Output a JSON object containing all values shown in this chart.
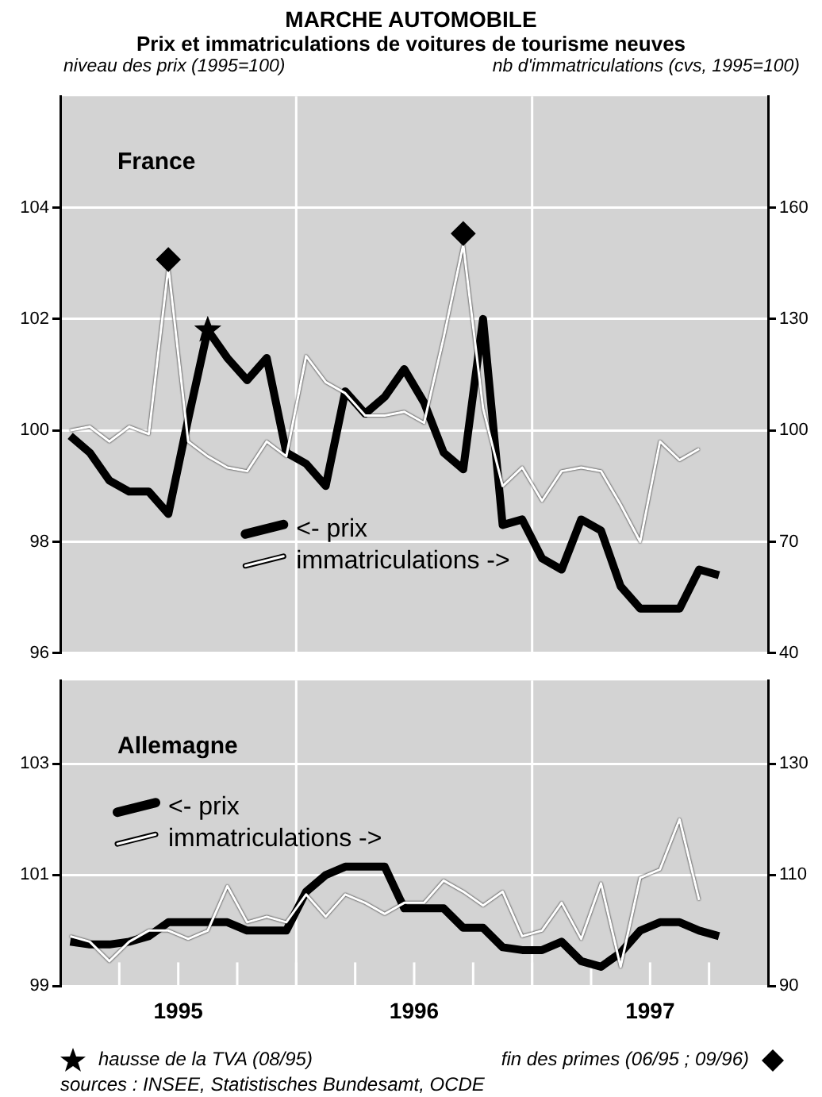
{
  "chart_data": [
    {
      "type": "line",
      "title": "MARCHE AUTOMOBILE",
      "subtitle": "Prix et immatriculations de voitures de tourisme neuves",
      "ylabel": "niveau des prix (1995=100)",
      "y2label": "nb d'immatriculations (cvs, 1995=100)",
      "annotations": [
        "France"
      ],
      "x": [
        1995.042,
        1995.125,
        1995.208,
        1995.292,
        1995.375,
        1995.458,
        1995.542,
        1995.625,
        1995.708,
        1995.792,
        1995.875,
        1995.958,
        1996.042,
        1996.125,
        1996.208,
        1996.292,
        1996.375,
        1996.458,
        1996.542,
        1996.625,
        1996.708,
        1996.792,
        1996.875,
        1996.958,
        1997.042,
        1997.125,
        1997.208,
        1997.292,
        1997.375,
        1997.458,
        1997.542,
        1997.625,
        1997.708,
        1997.792
      ],
      "xlim": [
        1995,
        1998
      ],
      "ylim": [
        96,
        106
      ],
      "yticks": [
        96,
        98,
        100,
        102,
        104
      ],
      "y2lim": [
        40,
        190
      ],
      "y2ticks": [
        40,
        70,
        100,
        130,
        160
      ],
      "series": [
        {
          "name": "<- prix",
          "color": "#000000",
          "axis": "y",
          "values": [
            99.9,
            99.6,
            99.1,
            98.9,
            98.9,
            98.5,
            100.2,
            101.8,
            101.3,
            100.9,
            101.3,
            99.6,
            99.4,
            99.0,
            100.7,
            100.3,
            100.6,
            101.1,
            100.5,
            99.6,
            99.3,
            102.0,
            98.3,
            98.4,
            97.7,
            97.5,
            98.4,
            98.2,
            97.2,
            96.8,
            96.8,
            96.8,
            97.5,
            97.4
          ]
        },
        {
          "name": "immatriculations ->",
          "color": "#ffffff",
          "axis": "y2",
          "values": [
            100,
            101,
            97,
            101,
            99,
            144,
            97,
            93,
            90,
            89,
            97,
            93,
            120,
            113,
            110,
            104,
            104,
            105,
            102,
            125,
            150,
            106,
            85,
            90,
            81,
            89,
            90,
            89,
            80,
            70,
            97,
            92,
            95,
            null
          ]
        },
        {
          "type": "scatter",
          "color": "#000000",
          "axis": "y",
          "marker": "star",
          "x": [
            1995.625
          ],
          "values": [
            101.8
          ]
        },
        {
          "type": "scatter",
          "color": "#000000",
          "axis": "y2",
          "marker": "diamond",
          "x": [
            1995.458,
            1996.708
          ],
          "values": [
            146,
            153
          ]
        }
      ],
      "ref_lines": [
        {
          "axis": "x",
          "value": 1996,
          "color": "#ffffff"
        },
        {
          "axis": "x",
          "value": 1997,
          "color": "#ffffff"
        }
      ],
      "grid": "y",
      "legend": "bottom",
      "tick_labels": "y",
      "marker": "none"
    },
    {
      "type": "line",
      "annotations": [
        "Allemagne",
        "hausse de la TVA (08/95)",
        "fin des primes (06/95 ; 09/96)",
        "sources : INSEE, Statistisches Bundesamt, OCDE"
      ],
      "x": [
        1995.042,
        1995.125,
        1995.208,
        1995.292,
        1995.375,
        1995.458,
        1995.542,
        1995.625,
        1995.708,
        1995.792,
        1995.875,
        1995.958,
        1996.042,
        1996.125,
        1996.208,
        1996.292,
        1996.375,
        1996.458,
        1996.542,
        1996.625,
        1996.708,
        1996.792,
        1996.875,
        1996.958,
        1997.042,
        1997.125,
        1997.208,
        1997.292,
        1997.375,
        1997.458,
        1997.542,
        1997.625,
        1997.708,
        1997.792
      ],
      "xlim": [
        1995,
        1998
      ],
      "xticks": [
        {
          "value": 1995.25,
          "label": null
        },
        {
          "value": 1995.5,
          "label": "1995"
        },
        {
          "value": 1995.75,
          "label": null
        },
        {
          "value": 1996,
          "label": null
        },
        {
          "value": 1996.25,
          "label": null
        },
        {
          "value": 1996.5,
          "label": "1996"
        },
        {
          "value": 1996.75,
          "label": null
        },
        {
          "value": 1997,
          "label": null
        },
        {
          "value": 1997.25,
          "label": null
        },
        {
          "value": 1997.5,
          "label": "1997"
        },
        {
          "value": 1997.75,
          "label": null
        }
      ],
      "ylim": [
        99,
        104.5
      ],
      "yticks": [
        99,
        101,
        103
      ],
      "y2lim": [
        90,
        145
      ],
      "y2ticks": [
        90,
        110,
        130
      ],
      "series": [
        {
          "name": "<- prix",
          "color": "#000000",
          "axis": "y",
          "values": [
            99.8,
            99.75,
            99.75,
            99.8,
            99.9,
            100.15,
            100.15,
            100.15,
            100.15,
            100.0,
            100.0,
            100.0,
            100.7,
            101.0,
            101.15,
            101.15,
            101.15,
            100.4,
            100.4,
            100.4,
            100.05,
            100.05,
            99.7,
            99.65,
            99.65,
            99.8,
            99.45,
            99.35,
            99.6,
            100.0,
            100.15,
            100.15,
            100.0,
            99.9
          ]
        },
        {
          "name": "immatriculations ->",
          "color": "#ffffff",
          "axis": "y2",
          "values": [
            99,
            98,
            94.5,
            98,
            100,
            100,
            98.5,
            100,
            108,
            101.5,
            102.5,
            101.5,
            106.5,
            102.5,
            106.5,
            105,
            103,
            105,
            105,
            109,
            107,
            104.5,
            107,
            99,
            100,
            105,
            98.5,
            108.5,
            93.5,
            109.5,
            111,
            120,
            105.5,
            null
          ]
        }
      ],
      "ref_lines": [
        {
          "axis": "x",
          "value": 1996,
          "color": "#ffffff"
        },
        {
          "axis": "x",
          "value": 1997,
          "color": "#ffffff"
        }
      ],
      "grid": "y",
      "legend": "top left",
      "marker": "none"
    }
  ]
}
